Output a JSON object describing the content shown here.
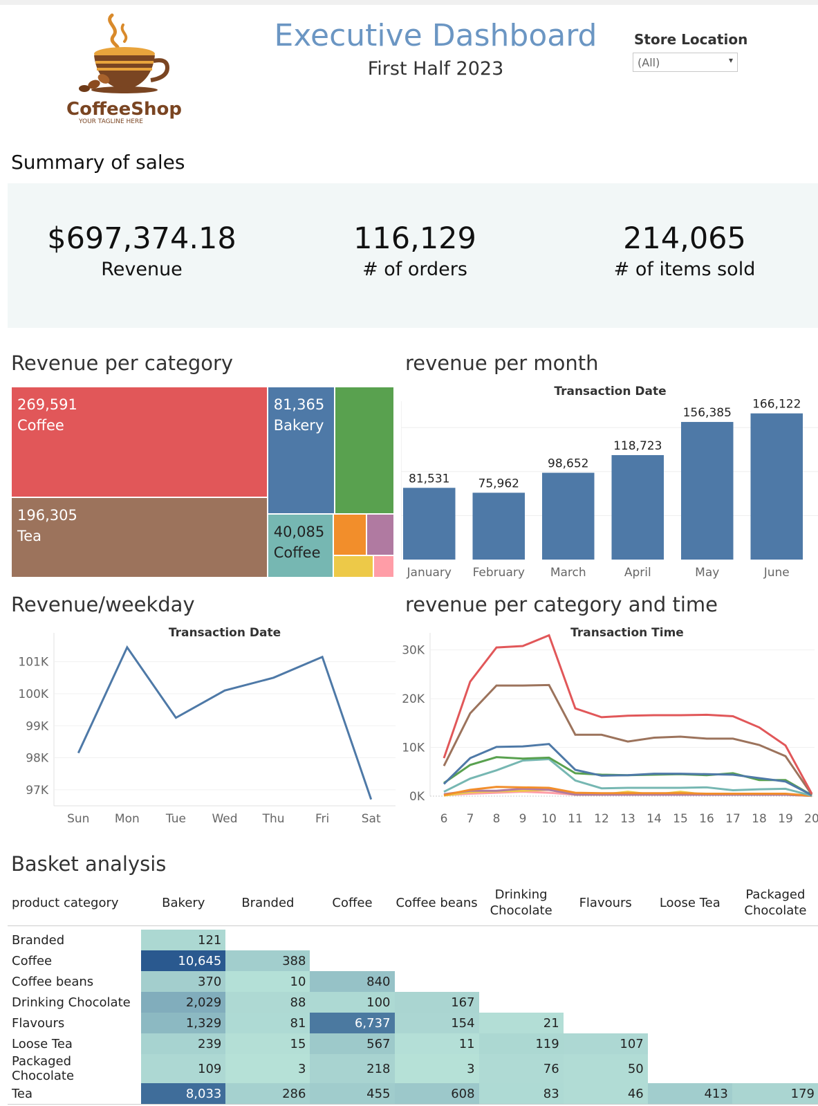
{
  "header": {
    "logo_text": "CoffeeShop",
    "logo_tagline": "YOUR TAGLINE HERE",
    "title": "Executive Dashboard",
    "subtitle": "First Half 2023",
    "filter_label": "Store Location",
    "filter_value": "(All)"
  },
  "summary": {
    "title": "Summary of sales",
    "kpis": [
      {
        "value": "$697,374.18",
        "label": "Revenue"
      },
      {
        "value": "116,129",
        "label": "# of orders"
      },
      {
        "value": "214,065",
        "label": "# of items sold"
      }
    ]
  },
  "sections": {
    "treemap_title": "Revenue per category",
    "monthly_title": "revenue per month",
    "weekday_title": "Revenue/weekday",
    "time_title": "revenue per category and time",
    "basket_title": "Basket analysis"
  },
  "chart_data": [
    {
      "type": "treemap",
      "title": "Revenue per category",
      "tiles": [
        {
          "label": "Coffee",
          "value": 269591,
          "value_text": "269,591",
          "color": "#e15759",
          "text_color": "#ffffff"
        },
        {
          "label": "Tea",
          "value": 196305,
          "value_text": "196,305",
          "color": "#9c735c",
          "text_color": "#ffffff"
        },
        {
          "label": "Bakery",
          "value": 81365,
          "value_text": "81,365",
          "color": "#4e79a7",
          "text_color": "#ffffff"
        },
        {
          "label": "",
          "value": 72000,
          "value_text": "",
          "color": "#59a14f",
          "text_color": "#ffffff"
        },
        {
          "label": "Coffee",
          "value": 40085,
          "value_text": "40,085",
          "color": "#76b7b2",
          "text_color": "#222222"
        },
        {
          "label": "",
          "value": 13000,
          "value_text": "",
          "color": "#f28e2b",
          "text_color": "#ffffff"
        },
        {
          "label": "",
          "value": 11000,
          "value_text": "",
          "color": "#b07aa1",
          "text_color": "#ffffff"
        },
        {
          "label": "",
          "value": 8500,
          "value_text": "",
          "color": "#edc948",
          "text_color": "#ffffff"
        },
        {
          "label": "",
          "value": 4400,
          "value_text": "",
          "color": "#ff9da7",
          "text_color": "#ffffff"
        }
      ]
    },
    {
      "type": "bar",
      "title": "revenue per month",
      "xlabel": "Transaction Date",
      "categories": [
        "January",
        "February",
        "March",
        "April",
        "May",
        "June"
      ],
      "values": [
        81531,
        75962,
        98652,
        118723,
        156385,
        166122
      ],
      "value_labels": [
        "81,531",
        "75,962",
        "98,652",
        "118,723",
        "156,385",
        "166,122"
      ],
      "ylim": [
        0,
        180000
      ],
      "color": "#4e79a7",
      "grid": true
    },
    {
      "type": "line",
      "title": "Revenue/weekday",
      "xlabel": "Transaction Date",
      "categories": [
        "Sun",
        "Mon",
        "Tue",
        "Wed",
        "Thu",
        "Fri",
        "Sat"
      ],
      "values": [
        98150,
        101450,
        99250,
        100100,
        100500,
        101150,
        96700
      ],
      "yticks": [
        97000,
        98000,
        99000,
        100000,
        101000
      ],
      "ytick_labels": [
        "97K",
        "98K",
        "99K",
        "100K",
        "101K"
      ],
      "ylim": [
        96500,
        101900
      ],
      "color": "#4e79a7",
      "grid": true
    },
    {
      "type": "line",
      "title": "revenue per category and time",
      "xlabel": "Transaction Time",
      "x": [
        6,
        7,
        8,
        9,
        10,
        11,
        12,
        13,
        14,
        15,
        16,
        17,
        18,
        19,
        20
      ],
      "yticks": [
        0,
        10000,
        20000,
        30000
      ],
      "ytick_labels": [
        "0K",
        "10K",
        "20K",
        "30K"
      ],
      "ylim": [
        0,
        33500
      ],
      "grid": true,
      "series": [
        {
          "color": "#e15759",
          "values": [
            7800,
            23500,
            30500,
            30800,
            33000,
            18000,
            16200,
            16500,
            16600,
            16600,
            16700,
            16400,
            14100,
            10400,
            500
          ]
        },
        {
          "color": "#9c735c",
          "values": [
            6200,
            17000,
            22700,
            22700,
            22800,
            12600,
            12600,
            11200,
            12000,
            12200,
            11800,
            11800,
            10500,
            8200,
            300
          ]
        },
        {
          "color": "#4e79a7",
          "values": [
            2500,
            7800,
            10100,
            10200,
            10700,
            5400,
            4200,
            4300,
            4600,
            4600,
            4500,
            4400,
            3700,
            3000,
            200
          ]
        },
        {
          "color": "#59a14f",
          "values": [
            2700,
            6400,
            8000,
            7700,
            7900,
            4700,
            4400,
            4300,
            4400,
            4500,
            4300,
            4700,
            3300,
            3300,
            200
          ]
        },
        {
          "color": "#76b7b2",
          "values": [
            900,
            3600,
            5300,
            7300,
            7600,
            3200,
            1600,
            1700,
            1700,
            1700,
            1800,
            1200,
            1400,
            1500,
            100
          ]
        },
        {
          "color": "#f28e2b",
          "values": [
            200,
            1300,
            1900,
            1800,
            1700,
            700,
            600,
            600,
            600,
            600,
            500,
            500,
            500,
            500,
            50
          ]
        },
        {
          "color": "#b07aa1",
          "values": [
            400,
            1100,
            1100,
            1500,
            1300,
            300,
            300,
            300,
            300,
            300,
            300,
            300,
            300,
            300,
            50
          ]
        },
        {
          "color": "#edc948",
          "values": [
            100,
            800,
            1000,
            1100,
            1300,
            300,
            300,
            900,
            300,
            900,
            300,
            300,
            300,
            300,
            50
          ]
        },
        {
          "color": "#ff9da7",
          "values": [
            200,
            500,
            700,
            900,
            700,
            300,
            300,
            300,
            300,
            300,
            300,
            300,
            300,
            300,
            50
          ]
        }
      ]
    },
    {
      "type": "table",
      "title": "Basket analysis",
      "row_header": "product category",
      "columns": [
        "Bakery",
        "Branded",
        "Coffee",
        "Coffee beans",
        "Drinking Chocolate",
        "Flavours",
        "Loose Tea",
        "Packaged Chocolate"
      ],
      "rows": [
        {
          "label": "Branded",
          "values": [
            121,
            null,
            null,
            null,
            null,
            null,
            null,
            null
          ]
        },
        {
          "label": "Coffee",
          "values": [
            10645,
            388,
            null,
            null,
            null,
            null,
            null,
            null
          ]
        },
        {
          "label": "Coffee beans",
          "values": [
            370,
            10,
            840,
            null,
            null,
            null,
            null,
            null
          ]
        },
        {
          "label": "Drinking Chocolate",
          "values": [
            2029,
            88,
            100,
            167,
            null,
            null,
            null,
            null
          ]
        },
        {
          "label": "Flavours",
          "values": [
            1329,
            81,
            6737,
            154,
            21,
            null,
            null,
            null
          ]
        },
        {
          "label": "Loose Tea",
          "values": [
            239,
            15,
            567,
            11,
            119,
            107,
            null,
            null
          ]
        },
        {
          "label": "Packaged Chocolate",
          "values": [
            109,
            3,
            218,
            3,
            76,
            50,
            null,
            null
          ]
        },
        {
          "label": "Tea",
          "values": [
            8033,
            286,
            455,
            608,
            83,
            46,
            413,
            179
          ]
        }
      ]
    }
  ]
}
